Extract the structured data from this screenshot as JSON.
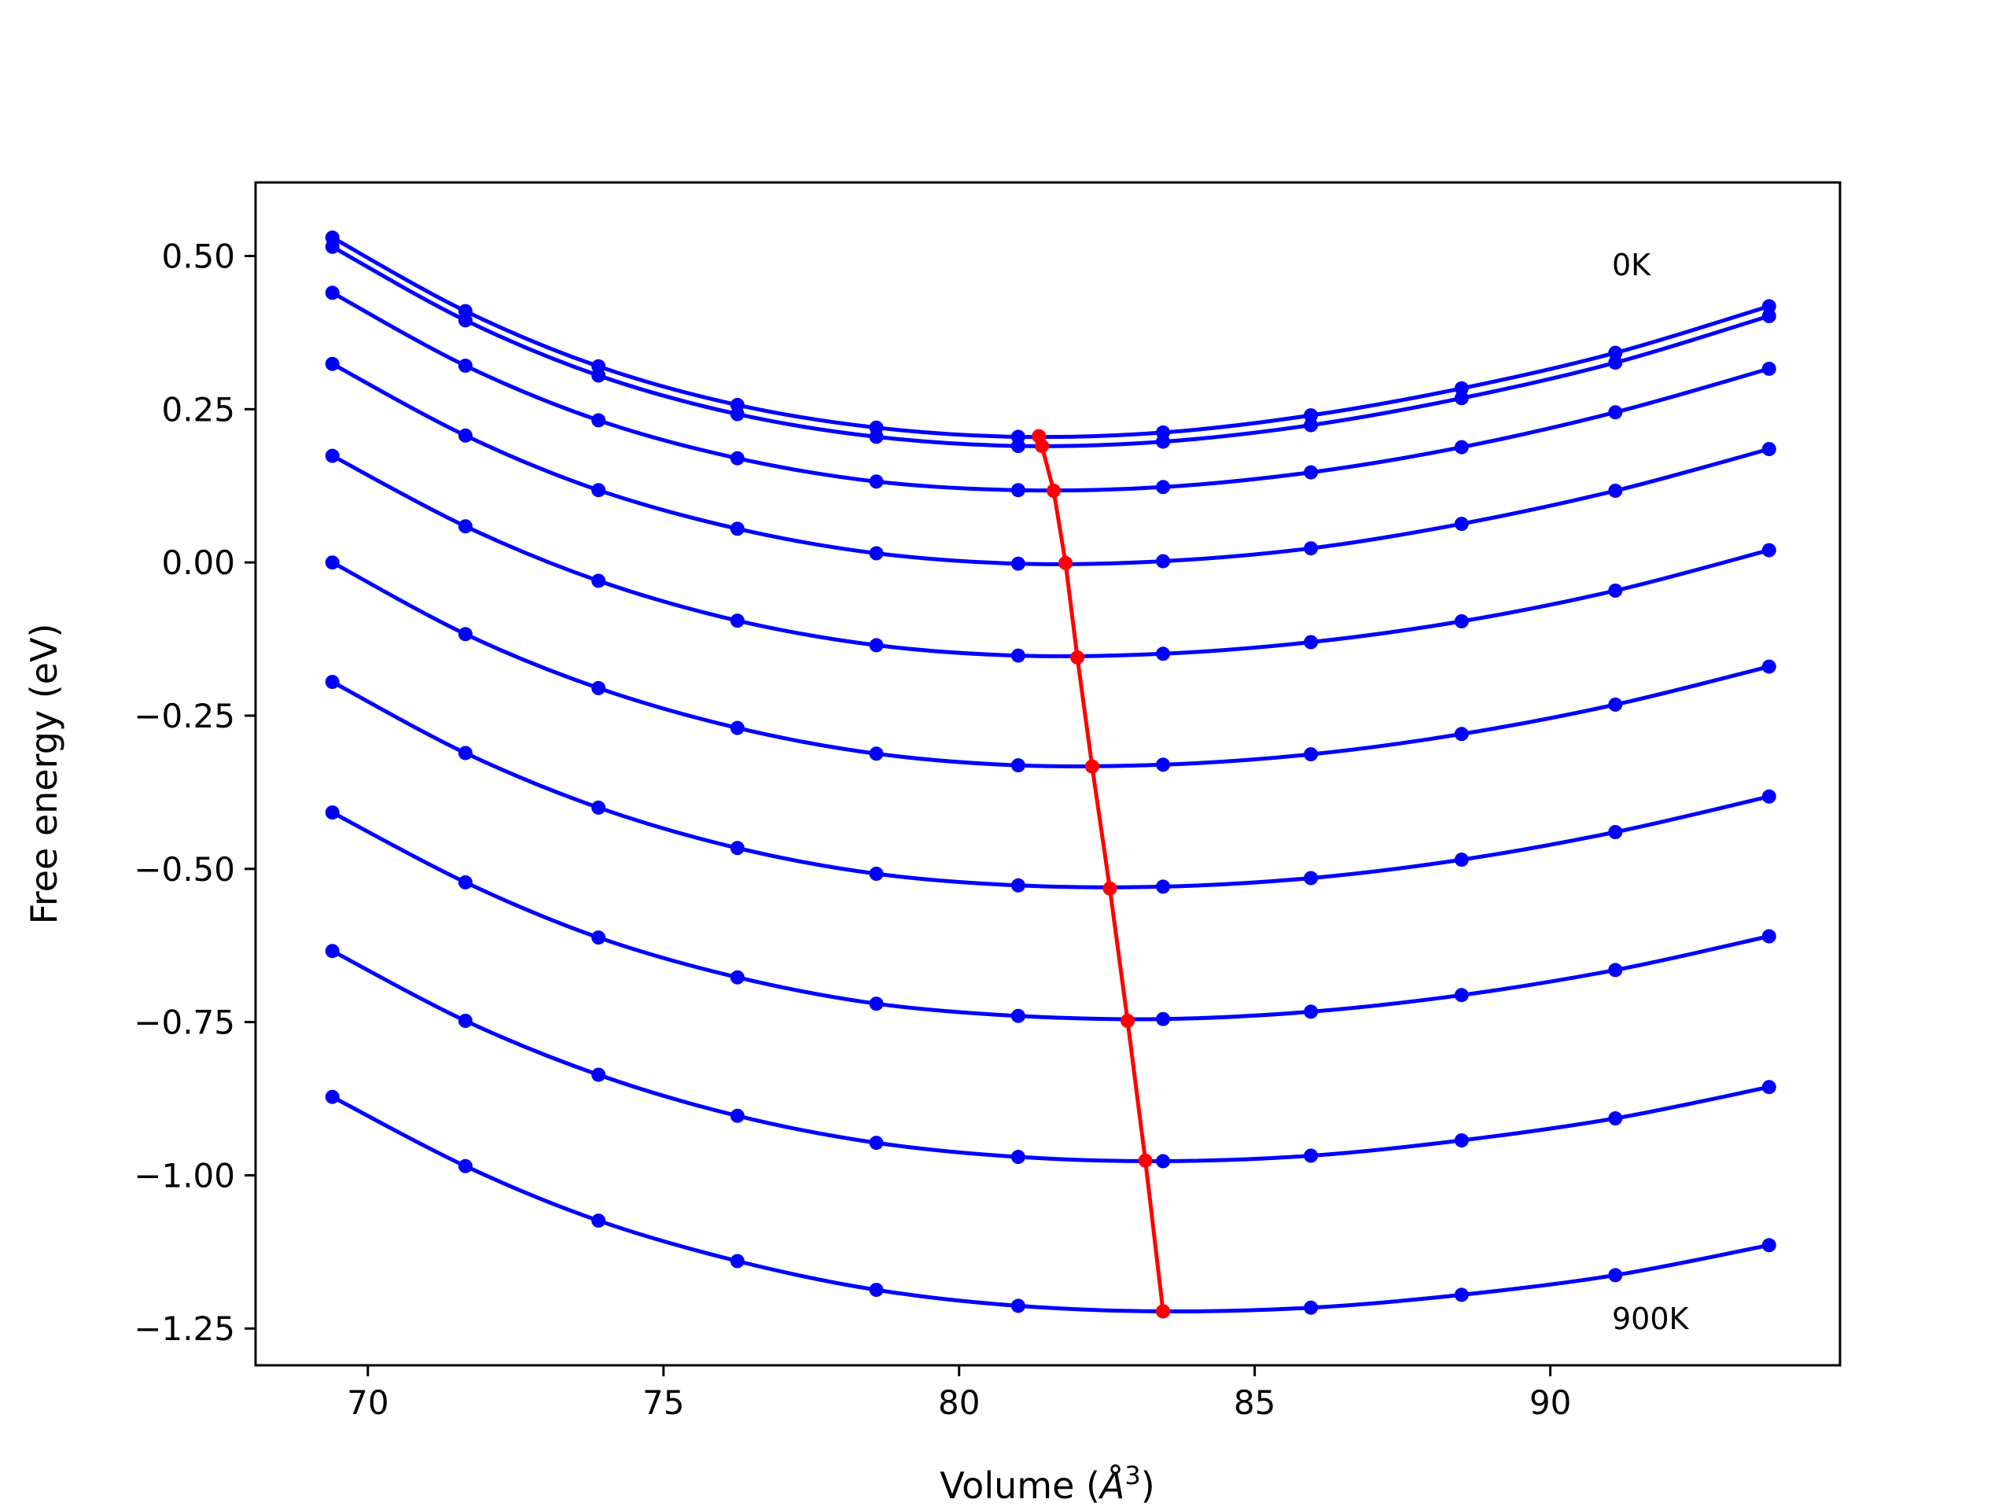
{
  "chart_data": {
    "type": "line",
    "title": "",
    "xlabel_main": "Volume (",
    "xlabel_unit": "Å",
    "xlabel_exp": "3",
    "xlabel_close": ")",
    "ylabel": "Free energy (eV)",
    "xlim": [
      68.1,
      94.9
    ],
    "ylim": [
      -1.31,
      0.62
    ],
    "xticks": [
      70,
      75,
      80,
      85,
      90
    ],
    "xtick_labels": [
      "70",
      "75",
      "80",
      "85",
      "90"
    ],
    "yticks": [
      0.5,
      0.25,
      0.0,
      -0.25,
      -0.5,
      -0.75,
      -1.0,
      -1.25
    ],
    "ytick_labels": [
      "0.50",
      "0.25",
      "0.00",
      "−0.25",
      "−0.50",
      "−0.75",
      "−1.00",
      "−1.25"
    ],
    "annotations": [
      {
        "text": "0K",
        "x": 91.1,
        "y": 0.46
      },
      {
        "text": "900K",
        "x": 91.1,
        "y": -1.27
      }
    ],
    "x": [
      69.4,
      71.65,
      73.9,
      76.25,
      78.6,
      81.0,
      83.45,
      85.95,
      88.5,
      91.1,
      93.7
    ],
    "series": [
      {
        "values": [
          0.53,
          0.41,
          0.32,
          0.257,
          0.22,
          0.205,
          0.212,
          0.24,
          0.284,
          0.342,
          0.418
        ]
      },
      {
        "values": [
          0.515,
          0.395,
          0.305,
          0.242,
          0.205,
          0.19,
          0.197,
          0.224,
          0.268,
          0.326,
          0.402
        ]
      },
      {
        "values": [
          0.44,
          0.321,
          0.232,
          0.17,
          0.132,
          0.118,
          0.123,
          0.147,
          0.188,
          0.245,
          0.316
        ]
      },
      {
        "values": [
          0.324,
          0.207,
          0.118,
          0.055,
          0.015,
          -0.002,
          0.002,
          0.023,
          0.063,
          0.117,
          0.185
        ]
      },
      {
        "values": [
          0.174,
          0.059,
          -0.03,
          -0.095,
          -0.135,
          -0.152,
          -0.149,
          -0.13,
          -0.096,
          -0.046,
          0.02
        ]
      },
      {
        "values": [
          0.0,
          -0.117,
          -0.205,
          -0.27,
          -0.312,
          -0.331,
          -0.33,
          -0.313,
          -0.28,
          -0.232,
          -0.17
        ]
      },
      {
        "values": [
          -0.195,
          -0.311,
          -0.4,
          -0.466,
          -0.508,
          -0.527,
          -0.529,
          -0.515,
          -0.485,
          -0.44,
          -0.382
        ]
      },
      {
        "values": [
          -0.408,
          -0.522,
          -0.612,
          -0.677,
          -0.72,
          -0.74,
          -0.745,
          -0.733,
          -0.706,
          -0.665,
          -0.61
        ]
      },
      {
        "values": [
          -0.634,
          -0.748,
          -0.836,
          -0.903,
          -0.947,
          -0.97,
          -0.977,
          -0.968,
          -0.943,
          -0.907,
          -0.856
        ]
      },
      {
        "values": [
          -0.872,
          -0.985,
          -1.074,
          -1.14,
          -1.187,
          -1.213,
          -1.222,
          -1.216,
          -1.195,
          -1.163,
          -1.114
        ]
      }
    ],
    "minima": {
      "x": [
        81.35,
        81.4,
        81.6,
        81.8,
        82.0,
        82.25,
        82.55,
        82.85,
        83.15,
        83.45
      ],
      "values": [
        0.206,
        0.19,
        0.117,
        -0.001,
        -0.155,
        -0.333,
        -0.532,
        -0.748,
        -0.976,
        -1.222
      ]
    },
    "colors": {
      "curves": "#0000ff",
      "minima": "#ff0000"
    },
    "grid": false
  }
}
